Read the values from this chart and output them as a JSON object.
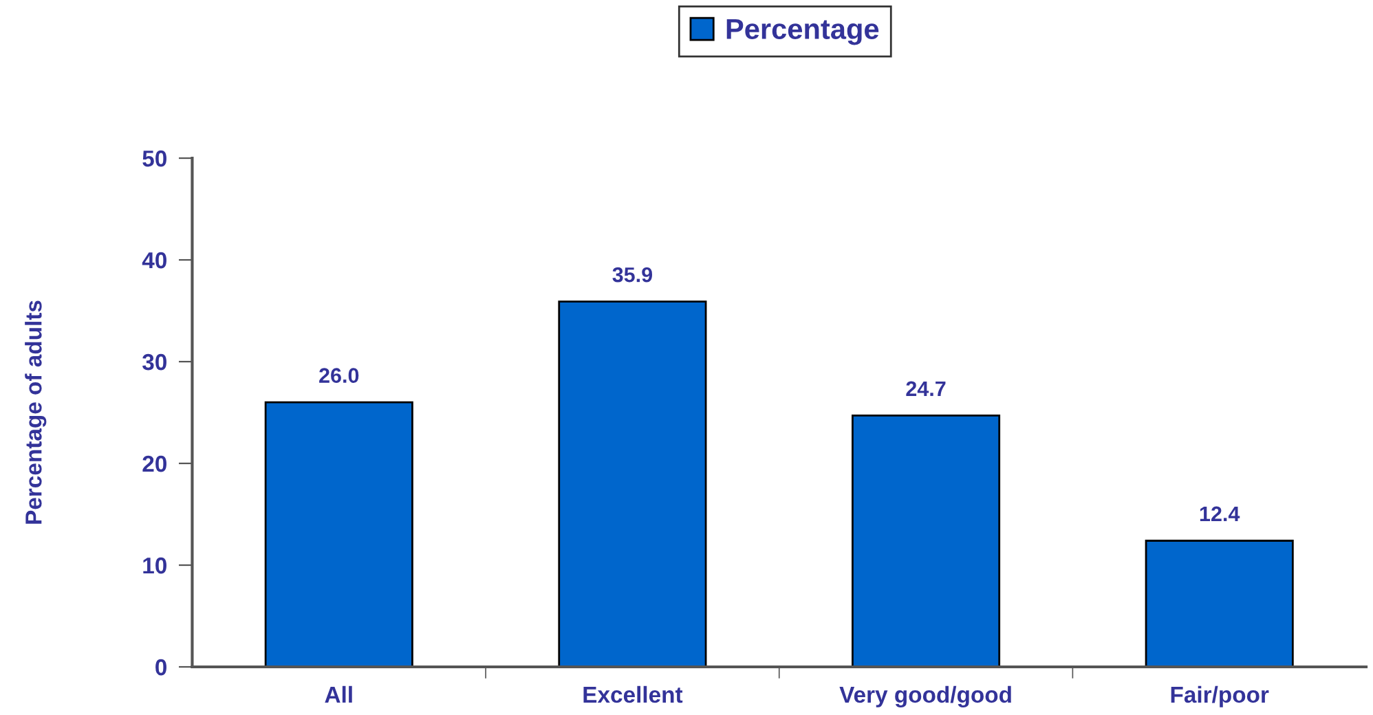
{
  "chart_data": {
    "type": "bar",
    "ylabel": "Percentage of adults",
    "categories": [
      "All",
      "Excellent",
      "Very good/good",
      "Fair/poor"
    ],
    "series": [
      {
        "name": "Percentage",
        "color": "#0066cc",
        "values": [
          26.0,
          35.9,
          24.7,
          12.4
        ],
        "value_labels": [
          "26.0",
          "35.9",
          "24.7",
          "12.4"
        ]
      }
    ],
    "ylim": [
      0,
      50
    ],
    "yticks": [
      0,
      10,
      20,
      30,
      40,
      50
    ],
    "legend": "top",
    "grid": false
  }
}
